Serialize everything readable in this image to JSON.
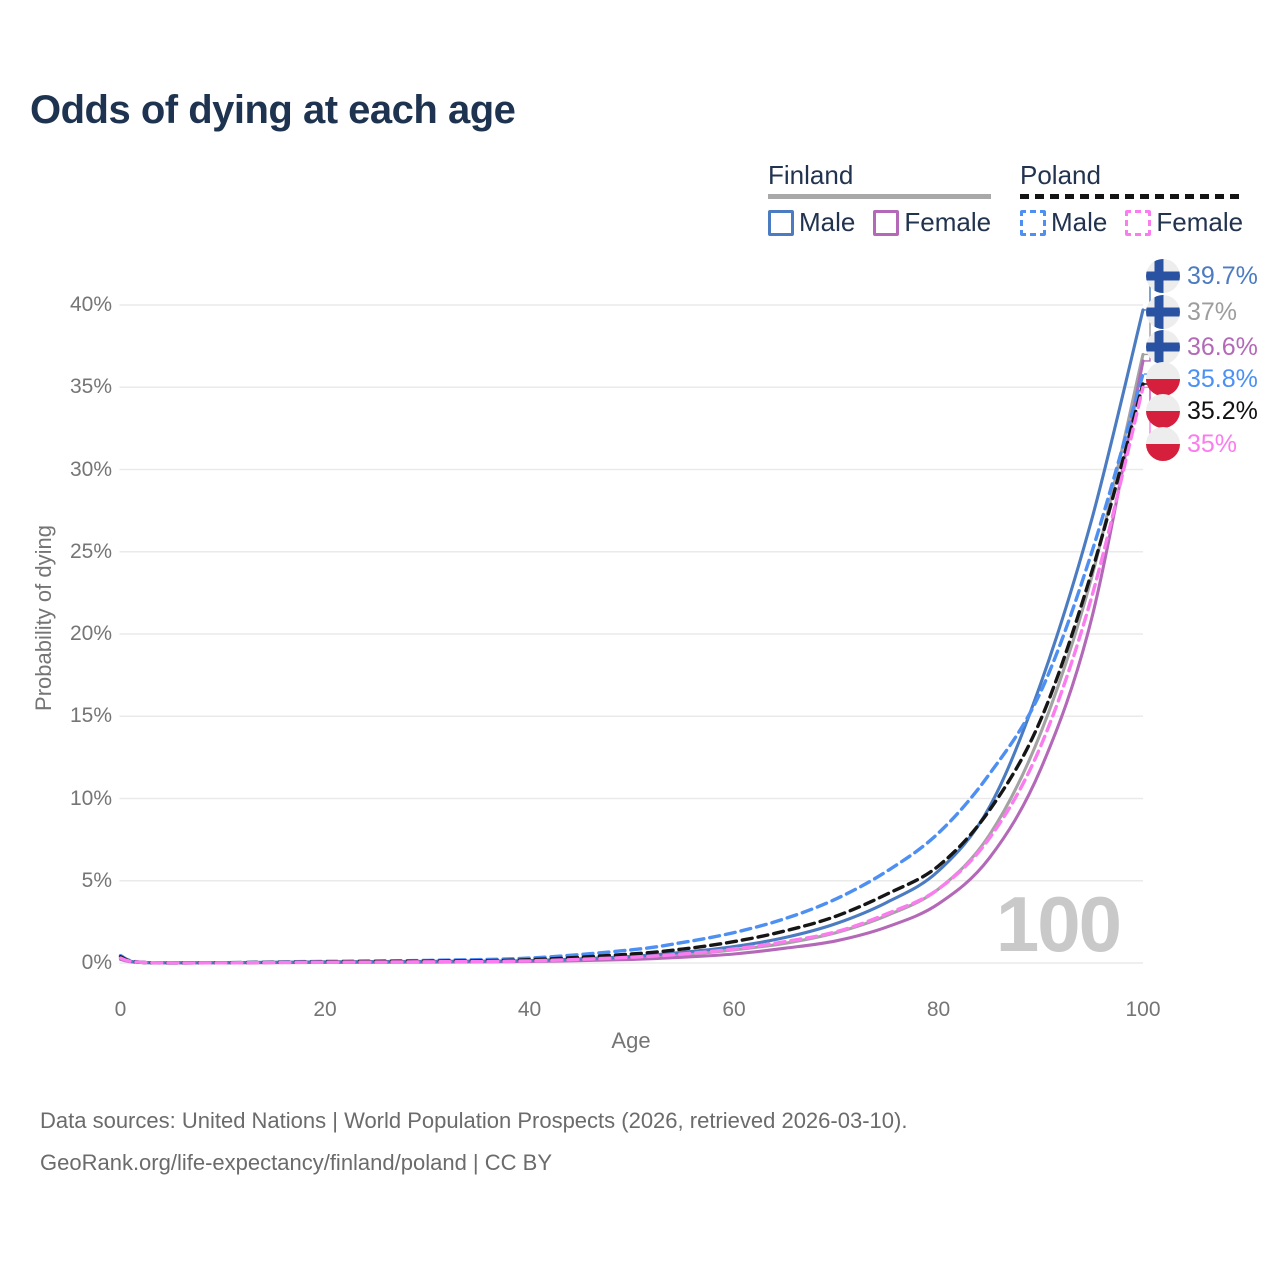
{
  "header": {
    "title": "Odds of dying at each age"
  },
  "legend": {
    "finland": {
      "label": "Finland",
      "male_label": "Male",
      "female_label": "Female",
      "underline": "solid-gray"
    },
    "poland": {
      "label": "Poland",
      "male_label": "Male",
      "female_label": "Female",
      "underline": "dashed-black"
    }
  },
  "watermark": "100",
  "footer": {
    "line1": "Data sources: United Nations | World Population Prospects (2026, retrieved 2026-03-10).",
    "line2": "GeoRank.org/life-expectancy/finland/poland | CC BY"
  },
  "colors": {
    "title_text": "#1d3350",
    "legend_text": "#22334f",
    "axis_text": "#757575",
    "gridline": "#eaeaea",
    "watermark": "#c9c9c9",
    "finland_male": "#4b7bc0",
    "finland_total": "#a3a3a3",
    "finland_female": "#b468b8",
    "poland_male": "#4d8ff2",
    "poland_total": "#161616",
    "poland_female": "#fa7cee",
    "finland_flag_blue": "#2a52a2",
    "poland_flag_red": "#d51f3c",
    "flag_white": "#ededed"
  },
  "chart_data": {
    "type": "line",
    "title": "Odds of dying at each age",
    "xlabel": "Age",
    "ylabel": "Probability of dying",
    "xlim": [
      0,
      100
    ],
    "ylim_pct": [
      0,
      42
    ],
    "x_ticks": [
      0,
      20,
      40,
      60,
      80,
      100
    ],
    "y_ticks_pct": [
      0,
      5,
      10,
      15,
      20,
      25,
      30,
      35,
      40
    ],
    "y_tick_labels": [
      "0%",
      "5%",
      "10%",
      "15%",
      "20%",
      "25%",
      "30%",
      "35%",
      "40%"
    ],
    "grid": "horizontal-only",
    "legend_position": "top-right",
    "ages": [
      0,
      2,
      10,
      20,
      30,
      40,
      50,
      55,
      60,
      65,
      70,
      75,
      80,
      85,
      90,
      95,
      100
    ],
    "series": [
      {
        "name": "Finland Male",
        "country": "Finland",
        "sex": "Male",
        "style": "solid",
        "color": "#4b7bc0",
        "values_pct": [
          0.3,
          0.04,
          0.02,
          0.07,
          0.1,
          0.15,
          0.4,
          0.65,
          1.0,
          1.55,
          2.4,
          3.7,
          5.6,
          9.5,
          17.0,
          27.0,
          39.7
        ],
        "end_value_pct": 39.7
      },
      {
        "name": "Finland Both sexes",
        "country": "Finland",
        "sex": "Both",
        "style": "solid",
        "color": "#a3a3a3",
        "values_pct": [
          0.26,
          0.03,
          0.02,
          0.05,
          0.08,
          0.12,
          0.3,
          0.5,
          0.8,
          1.2,
          1.85,
          2.9,
          4.5,
          7.8,
          14.0,
          23.5,
          37.0
        ],
        "end_value_pct": 37.0
      },
      {
        "name": "Finland Female",
        "country": "Finland",
        "sex": "Female",
        "style": "solid",
        "color": "#b468b8",
        "values_pct": [
          0.22,
          0.03,
          0.01,
          0.03,
          0.05,
          0.09,
          0.22,
          0.35,
          0.55,
          0.9,
          1.35,
          2.2,
          3.6,
          6.4,
          11.8,
          21.0,
          36.6
        ],
        "end_value_pct": 36.6
      },
      {
        "name": "Poland Male",
        "country": "Poland",
        "sex": "Male",
        "style": "dashed",
        "color": "#4d8ff2",
        "values_pct": [
          0.45,
          0.05,
          0.02,
          0.1,
          0.16,
          0.3,
          0.8,
          1.25,
          1.85,
          2.7,
          3.9,
          5.6,
          7.9,
          11.5,
          16.5,
          25.0,
          35.8
        ],
        "end_value_pct": 35.8
      },
      {
        "name": "Poland Both sexes",
        "country": "Poland",
        "sex": "Both",
        "style": "dashed",
        "color": "#161616",
        "values_pct": [
          0.38,
          0.04,
          0.02,
          0.07,
          0.11,
          0.2,
          0.55,
          0.85,
          1.3,
          1.95,
          2.85,
          4.2,
          5.9,
          9.3,
          14.8,
          23.8,
          35.2
        ],
        "end_value_pct": 35.2
      },
      {
        "name": "Poland Female",
        "country": "Poland",
        "sex": "Female",
        "style": "dashed",
        "color": "#fa7cee",
        "values_pct": [
          0.3,
          0.04,
          0.01,
          0.05,
          0.07,
          0.13,
          0.35,
          0.55,
          0.85,
          1.3,
          1.9,
          3.0,
          4.5,
          7.6,
          13.2,
          22.3,
          35.0
        ],
        "end_value_pct": 35.0
      }
    ],
    "end_labels": [
      {
        "value": "39.7%",
        "flag": "finland",
        "color": "#4b7bc0",
        "series": 0
      },
      {
        "value": "37%",
        "flag": "finland",
        "color": "#9d9d9d",
        "series": 1
      },
      {
        "value": "36.6%",
        "flag": "finland",
        "color": "#b468b8",
        "series": 2
      },
      {
        "value": "35.8%",
        "flag": "poland",
        "color": "#4a90f5",
        "series": 3
      },
      {
        "value": "35.2%",
        "flag": "poland",
        "color": "#111111",
        "series": 4
      },
      {
        "value": "35%",
        "flag": "poland",
        "color": "#fa7cee",
        "series": 5
      }
    ]
  }
}
